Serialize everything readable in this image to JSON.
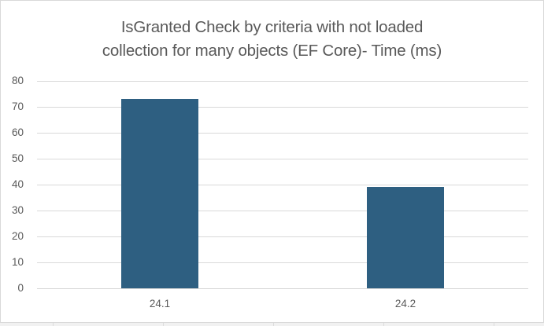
{
  "chart_data": {
    "type": "bar",
    "title": "IsGranted Check by criteria with not loaded collection for many objects (EF Core)- Time (ms)",
    "title_lines": [
      "IsGranted Check by criteria with not loaded",
      "collection for many objects (EF Core)- Time (ms)"
    ],
    "categories": [
      "24.1",
      "24.2"
    ],
    "values": [
      73,
      39
    ],
    "xlabel": "",
    "ylabel": "",
    "ylim": [
      0,
      80
    ],
    "yticks": [
      0,
      10,
      20,
      30,
      40,
      50,
      60,
      70,
      80
    ],
    "grid": true,
    "legend_position": "none",
    "colors": {
      "bar": "#2E5F81",
      "gridline": "#D9D9D9",
      "axis_line": "#D6D6D6",
      "text": "#595959",
      "chart_border": "#D9D9D9",
      "background": "#FFFFFF"
    }
  }
}
